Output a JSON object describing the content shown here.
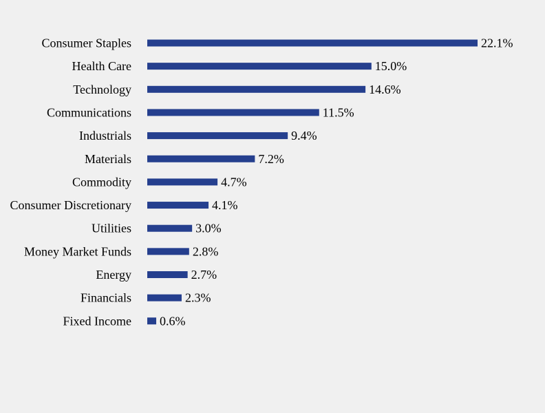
{
  "chart_data": {
    "type": "bar",
    "orientation": "horizontal",
    "categories": [
      "Consumer Staples",
      "Health Care",
      "Technology",
      "Communications",
      "Industrials",
      "Materials",
      "Commodity",
      "Consumer Discretionary",
      "Utilities",
      "Money Market Funds",
      "Energy",
      "Financials",
      "Fixed Income"
    ],
    "values": [
      22.1,
      15.0,
      14.6,
      11.5,
      9.4,
      7.2,
      4.7,
      4.1,
      3.0,
      2.8,
      2.7,
      2.3,
      0.6
    ],
    "value_labels": [
      "22.1%",
      "15.0%",
      "14.6%",
      "11.5%",
      "9.4%",
      "7.2%",
      "4.7%",
      "4.1%",
      "3.0%",
      "2.8%",
      "2.7%",
      "2.3%",
      "0.6%"
    ],
    "unit": "%",
    "title": "",
    "xlabel": "",
    "ylabel": "",
    "grid": false,
    "legend": "none",
    "colors": {
      "bar": "#253f8e",
      "background": "#f0f0f0",
      "text": "#000000"
    }
  }
}
